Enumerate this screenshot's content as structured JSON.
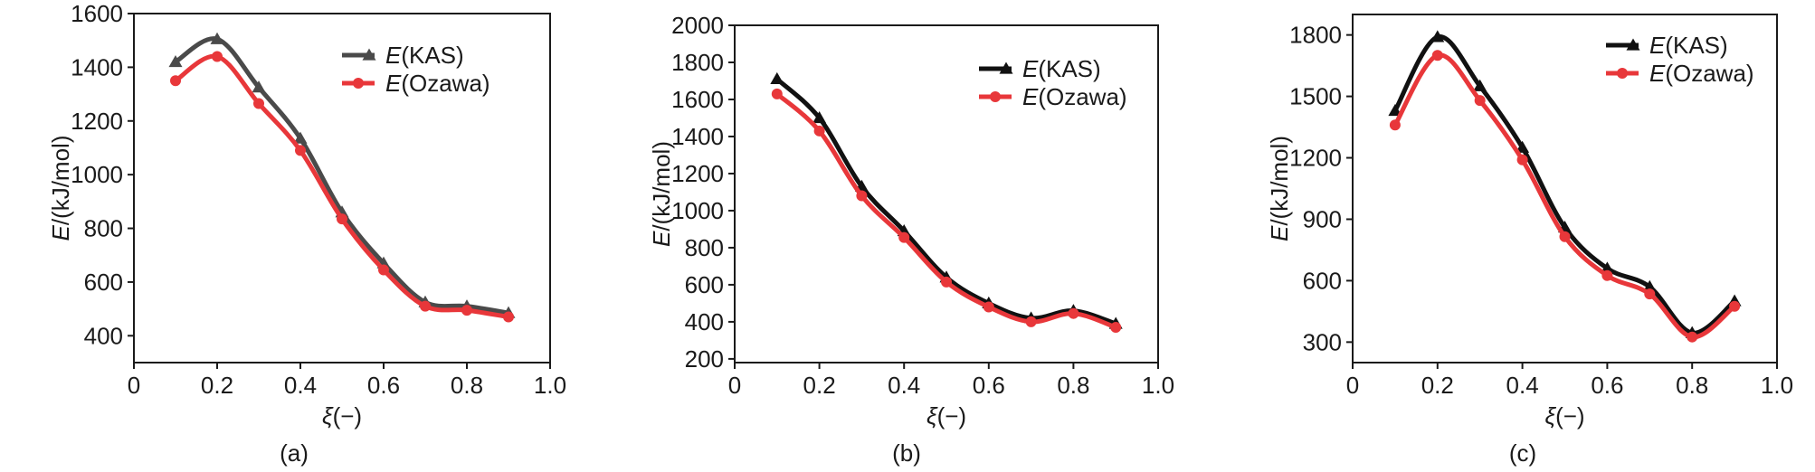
{
  "chart_data": [
    {
      "type": "line",
      "caption": "(a)",
      "xlabel_sym": "ξ",
      "xlabel_unit": "(−)",
      "ylabel_sym": "E",
      "ylabel_unit": "/(kJ/mol)",
      "xlim": [
        0,
        1.0
      ],
      "ylim": [
        300,
        1600
      ],
      "xticks": [
        0,
        0.2,
        0.4,
        0.6,
        0.8,
        1.0
      ],
      "xtick_labels": [
        "0",
        "0.2",
        "0.4",
        "0.6",
        "0.8",
        "1.0"
      ],
      "yticks": [
        400,
        600,
        800,
        1000,
        1200,
        1400,
        1600
      ],
      "ytick_labels": [
        "400",
        "600",
        "800",
        "1000",
        "1200",
        "1400",
        "1600"
      ],
      "x": [
        0.1,
        0.2,
        0.3,
        0.4,
        0.5,
        0.6,
        0.7,
        0.8,
        0.9
      ],
      "series": [
        {
          "name_sym": "E",
          "name_rest": "(KAS)",
          "marker": "triangle",
          "color": "#4a4a4a",
          "values": [
            1420,
            1505,
            1325,
            1135,
            860,
            670,
            525,
            510,
            485
          ]
        },
        {
          "name_sym": "E",
          "name_rest": "(Ozawa)",
          "marker": "circle",
          "color": "#e8373a",
          "values": [
            1350,
            1440,
            1265,
            1090,
            835,
            645,
            510,
            495,
            470
          ]
        }
      ]
    },
    {
      "type": "line",
      "caption": "(b)",
      "xlabel_sym": "ξ",
      "xlabel_unit": "(−)",
      "ylabel_sym": "E",
      "ylabel_unit": "/(kJ/mol)",
      "xlim": [
        0,
        1.0
      ],
      "ylim": [
        180,
        2000
      ],
      "xticks": [
        0,
        0.2,
        0.4,
        0.6,
        0.8,
        1.0
      ],
      "xtick_labels": [
        "0",
        "0.2",
        "0.4",
        "0.6",
        "0.8",
        "1.0"
      ],
      "yticks": [
        200,
        400,
        600,
        800,
        1000,
        1200,
        1400,
        1600,
        1800,
        2000
      ],
      "ytick_labels": [
        "200",
        "400",
        "600",
        "800",
        "1000",
        "1200",
        "1400",
        "1600",
        "1800",
        "2000"
      ],
      "x": [
        0.1,
        0.2,
        0.3,
        0.4,
        0.5,
        0.6,
        0.7,
        0.8,
        0.9
      ],
      "series": [
        {
          "name_sym": "E",
          "name_rest": "(KAS)",
          "marker": "triangle",
          "color": "#111111",
          "values": [
            1710,
            1500,
            1130,
            890,
            640,
            500,
            420,
            460,
            390
          ]
        },
        {
          "name_sym": "E",
          "name_rest": "(Ozawa)",
          "marker": "circle",
          "color": "#e8373a",
          "values": [
            1630,
            1430,
            1080,
            855,
            615,
            480,
            400,
            445,
            370
          ]
        }
      ]
    },
    {
      "type": "line",
      "caption": "(c)",
      "xlabel_sym": "ξ",
      "xlabel_unit": "(−)",
      "ylabel_sym": "E",
      "ylabel_unit": "/(kJ/mol)",
      "xlim": [
        0,
        1.0
      ],
      "ylim": [
        200,
        1900
      ],
      "xticks": [
        0,
        0.2,
        0.4,
        0.6,
        0.8,
        1.0
      ],
      "xtick_labels": [
        "0",
        "0.2",
        "0.4",
        "0.6",
        "0.8",
        "1.0"
      ],
      "yticks": [
        300,
        600,
        900,
        1200,
        1500,
        1800
      ],
      "ytick_labels": [
        "300",
        "600",
        "900",
        "1200",
        "1500",
        "1800"
      ],
      "x": [
        0.1,
        0.2,
        0.3,
        0.4,
        0.5,
        0.6,
        0.7,
        0.8,
        0.9
      ],
      "series": [
        {
          "name_sym": "E",
          "name_rest": "(KAS)",
          "marker": "triangle",
          "color": "#111111",
          "values": [
            1430,
            1790,
            1550,
            1250,
            860,
            660,
            570,
            345,
            500
          ]
        },
        {
          "name_sym": "E",
          "name_rest": "(Ozawa)",
          "marker": "circle",
          "color": "#e8373a",
          "values": [
            1360,
            1700,
            1480,
            1190,
            815,
            625,
            535,
            325,
            475
          ]
        }
      ]
    }
  ]
}
